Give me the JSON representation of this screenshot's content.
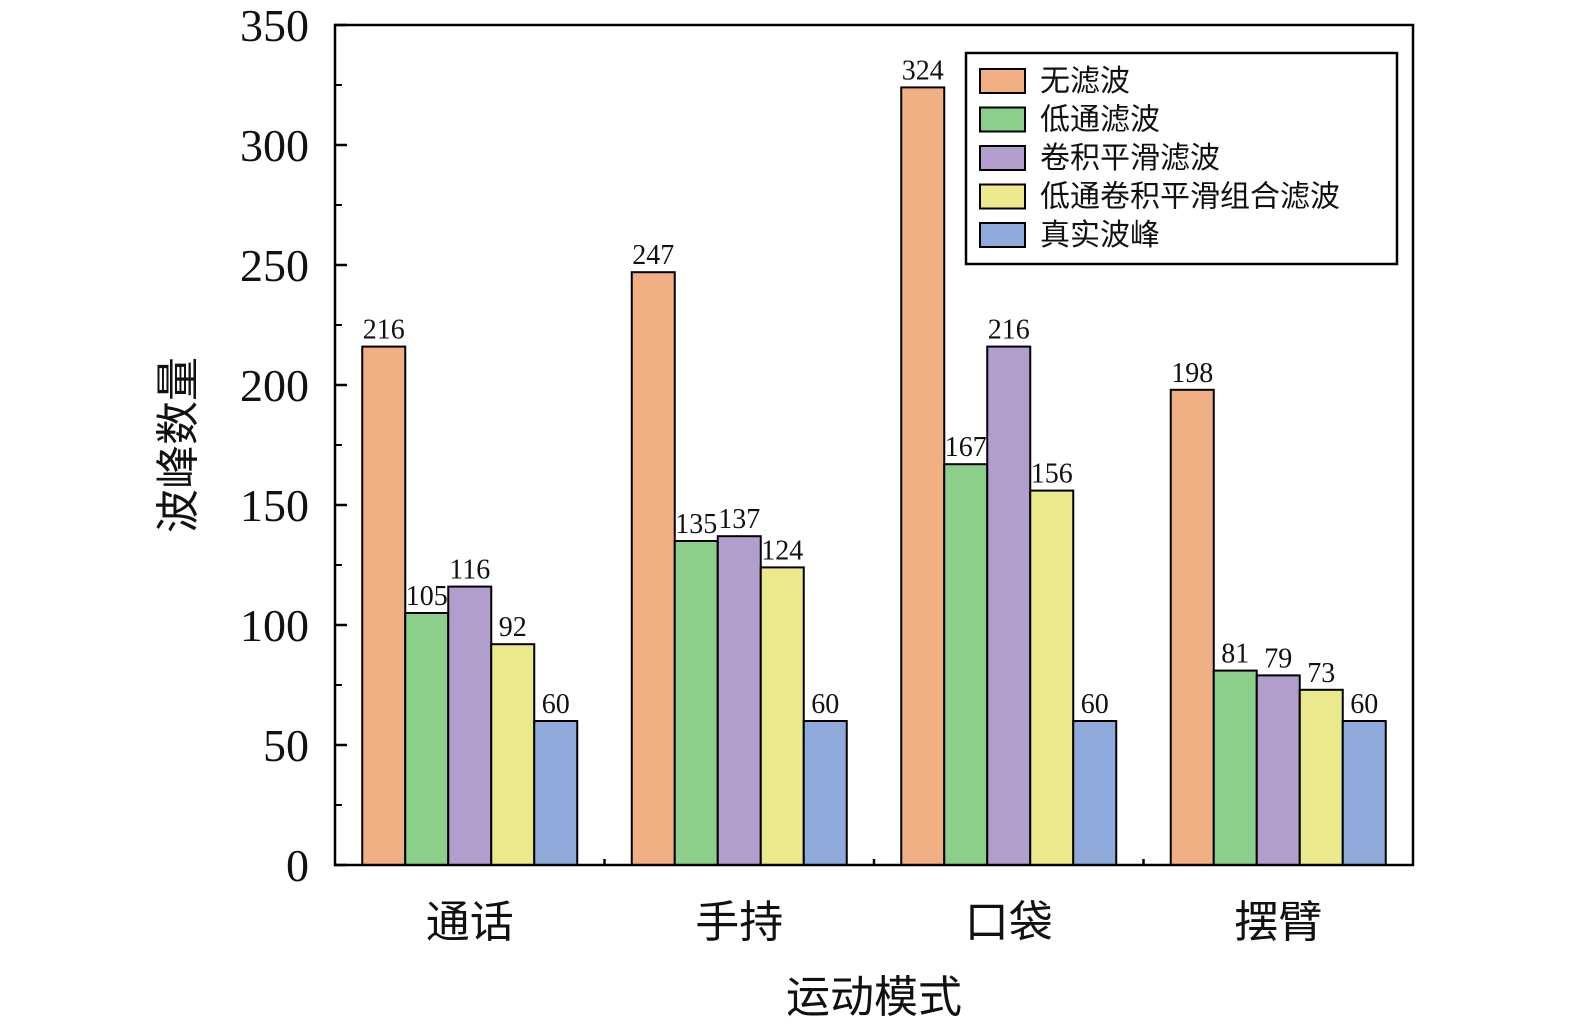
{
  "chart_data": {
    "type": "bar",
    "xlabel": "运动模式",
    "ylabel": "波峰数量",
    "ylim": [
      0,
      350
    ],
    "yticks": [
      0,
      50,
      100,
      150,
      200,
      250,
      300,
      350
    ],
    "categories": [
      "通话",
      "手持",
      "口袋",
      "摆臂"
    ],
    "series": [
      {
        "name": "无滤波",
        "values": [
          216,
          247,
          324,
          198
        ],
        "color": "#F0B084"
      },
      {
        "name": "低通滤波",
        "values": [
          105,
          135,
          167,
          81
        ],
        "color": "#8BCF8B"
      },
      {
        "name": "卷积平滑滤波",
        "values": [
          116,
          137,
          216,
          79
        ],
        "color": "#B29ECC"
      },
      {
        "name": "低通卷积平滑组合滤波",
        "values": [
          92,
          124,
          156,
          73
        ],
        "color": "#EAEA8C"
      },
      {
        "name": "真实波峰",
        "values": [
          60,
          60,
          60,
          60
        ],
        "color": "#8EAADB"
      }
    ],
    "legend_position": "top-right",
    "grid": false
  }
}
